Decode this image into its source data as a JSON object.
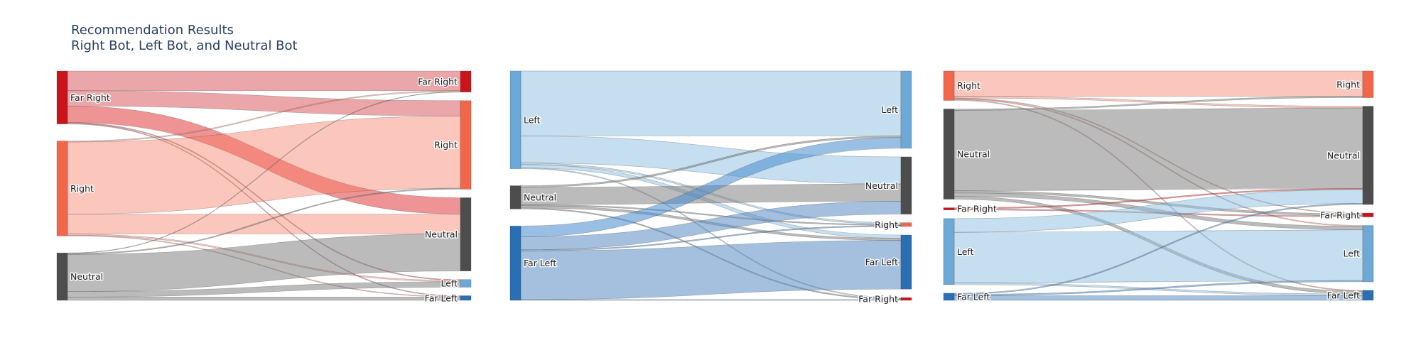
{
  "title": {
    "line1": "Recommendation Results",
    "line2": "Right Bot, Left Bot, and Neutral Bot"
  },
  "colors": {
    "Far Right": "#c9141c",
    "Right": "#f2664a",
    "Neutral": "#4d4d4d",
    "Left": "#6ca9d6",
    "Far Left": "#2b6fb3"
  },
  "link_colors": {
    "Far Right": "rgba(201,20,28,0.38)",
    "Far Right (to Neutral)": "rgba(225,60,60,0.55)",
    "Right": "rgba(245,120,95,0.42)",
    "Neutral": "rgba(125,125,125,0.52)",
    "Left": "rgba(140,190,225,0.5)",
    "Far Left": "rgba(90,140,195,0.55)",
    "Far Left (to Left)": "rgba(70,140,205,0.55)"
  },
  "chart_data": [
    {
      "type": "sankey",
      "name": "Right Bot",
      "sources": [
        "Far Right",
        "Right",
        "Neutral"
      ],
      "targets": [
        "Far Right",
        "Right",
        "Neutral",
        "Left",
        "Far Left"
      ],
      "links": [
        {
          "source": "Far Right",
          "target": "Far Right",
          "value": 18
        },
        {
          "source": "Far Right",
          "target": "Right",
          "value": 14
        },
        {
          "source": "Far Right",
          "target": "Neutral",
          "value": 15
        },
        {
          "source": "Far Right",
          "target": "Left",
          "value": 0.8
        },
        {
          "source": "Far Right",
          "target": "Far Left",
          "value": 0.6
        },
        {
          "source": "Right",
          "target": "Far Right",
          "value": 0.9
        },
        {
          "source": "Right",
          "target": "Right",
          "value": 66
        },
        {
          "source": "Right",
          "target": "Neutral",
          "value": 18
        },
        {
          "source": "Right",
          "target": "Left",
          "value": 1.2
        },
        {
          "source": "Right",
          "target": "Far Left",
          "value": 0.6
        },
        {
          "source": "Neutral",
          "target": "Far Right",
          "value": 0.4
        },
        {
          "source": "Neutral",
          "target": "Right",
          "value": 0.9
        },
        {
          "source": "Neutral",
          "target": "Neutral",
          "value": 34
        },
        {
          "source": "Neutral",
          "target": "Left",
          "value": 5
        },
        {
          "source": "Neutral",
          "target": "Far Left",
          "value": 3
        }
      ]
    },
    {
      "type": "sankey",
      "name": "Left Bot",
      "sources": [
        "Left",
        "Neutral",
        "Far Left"
      ],
      "targets": [
        "Left",
        "Neutral",
        "Right",
        "Far Left",
        "Far Right"
      ],
      "links": [
        {
          "source": "Left",
          "target": "Left",
          "value": 60
        },
        {
          "source": "Left",
          "target": "Neutral",
          "value": 25
        },
        {
          "source": "Left",
          "target": "Right",
          "value": 1.5
        },
        {
          "source": "Left",
          "target": "Far Left",
          "value": 3
        },
        {
          "source": "Left",
          "target": "Far Right",
          "value": 0.8
        },
        {
          "source": "Neutral",
          "target": "Left",
          "value": 1.5
        },
        {
          "source": "Neutral",
          "target": "Neutral",
          "value": 16
        },
        {
          "source": "Neutral",
          "target": "Right",
          "value": 1
        },
        {
          "source": "Neutral",
          "target": "Far Left",
          "value": 2
        },
        {
          "source": "Neutral",
          "target": "Far Right",
          "value": 1
        },
        {
          "source": "Far Left",
          "target": "Left",
          "value": 10
        },
        {
          "source": "Far Left",
          "target": "Neutral",
          "value": 12
        },
        {
          "source": "Far Left",
          "target": "Right",
          "value": 1
        },
        {
          "source": "Far Left",
          "target": "Far Left",
          "value": 45
        },
        {
          "source": "Far Left",
          "target": "Far Right",
          "value": 0.7
        }
      ]
    },
    {
      "type": "sankey",
      "name": "Neutral Bot",
      "sources": [
        "Right",
        "Neutral",
        "Far Right",
        "Left",
        "Far Left"
      ],
      "targets": [
        "Right",
        "Neutral",
        "Far Right",
        "Left",
        "Far Left"
      ],
      "links": [
        {
          "source": "Right",
          "target": "Right",
          "value": 22
        },
        {
          "source": "Right",
          "target": "Neutral",
          "value": 1.5
        },
        {
          "source": "Right",
          "target": "Far Right",
          "value": 0.6
        },
        {
          "source": "Right",
          "target": "Left",
          "value": 0.8
        },
        {
          "source": "Right",
          "target": "Far Left",
          "value": 0.7
        },
        {
          "source": "Neutral",
          "target": "Right",
          "value": 1.2
        },
        {
          "source": "Neutral",
          "target": "Neutral",
          "value": 70
        },
        {
          "source": "Neutral",
          "target": "Far Right",
          "value": 1.8
        },
        {
          "source": "Neutral",
          "target": "Left",
          "value": 3
        },
        {
          "source": "Neutral",
          "target": "Far Left",
          "value": 2.5
        },
        {
          "source": "Far Right",
          "target": "Neutral",
          "value": 1
        },
        {
          "source": "Far Right",
          "target": "Far Right",
          "value": 1
        },
        {
          "source": "Left",
          "target": "Neutral",
          "value": 12
        },
        {
          "source": "Left",
          "target": "Left",
          "value": 44
        },
        {
          "source": "Left",
          "target": "Far Left",
          "value": 1.5
        },
        {
          "source": "Far Left",
          "target": "Neutral",
          "value": 1
        },
        {
          "source": "Far Left",
          "target": "Left",
          "value": 1.2
        },
        {
          "source": "Far Left",
          "target": "Far Left",
          "value": 4
        }
      ]
    }
  ]
}
